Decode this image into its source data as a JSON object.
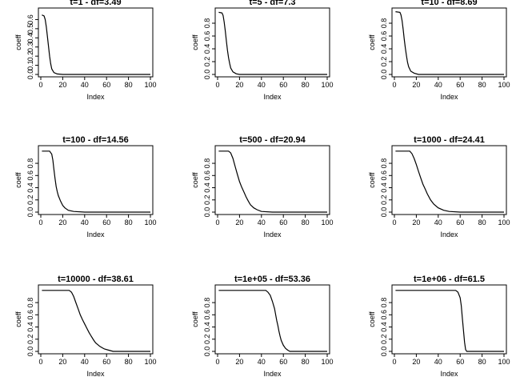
{
  "chart_data": [
    {
      "type": "line",
      "title": "t=1 - df=3.49",
      "xlabel": "Index",
      "ylabel": "coeff",
      "xlim": [
        0,
        100
      ],
      "ylim": [
        0,
        0.7
      ],
      "xticks": [
        0,
        20,
        40,
        60,
        80,
        100
      ],
      "yticks": [
        0.0,
        0.1,
        0.2,
        0.3,
        0.4,
        0.5,
        0.6
      ],
      "ytick_labels": [
        "0.0",
        "0.1",
        "0.2",
        "0.3",
        "0.4",
        "0.5",
        "0.6"
      ],
      "x": [
        1,
        3,
        4,
        5,
        6,
        7,
        8,
        9,
        10,
        12,
        15,
        20,
        30,
        50,
        100
      ],
      "y": [
        0.65,
        0.64,
        0.6,
        0.52,
        0.42,
        0.31,
        0.2,
        0.12,
        0.06,
        0.02,
        0.005,
        0.0,
        0.0,
        0.0,
        0.0
      ]
    },
    {
      "type": "line",
      "title": "t=5 - df=7.3",
      "xlabel": "Index",
      "ylabel": "coeff",
      "xlim": [
        0,
        100
      ],
      "ylim": [
        0,
        1.0
      ],
      "xticks": [
        0,
        20,
        40,
        60,
        80,
        100
      ],
      "yticks": [
        0.0,
        0.2,
        0.4,
        0.6,
        0.8
      ],
      "ytick_labels": [
        "0.0",
        "0.2",
        "0.4",
        "0.6",
        "0.8"
      ],
      "x": [
        1,
        4,
        5,
        6,
        7,
        8,
        9,
        10,
        11,
        12,
        14,
        17,
        20,
        30,
        50,
        100
      ],
      "y": [
        0.97,
        0.96,
        0.92,
        0.82,
        0.68,
        0.52,
        0.38,
        0.26,
        0.17,
        0.1,
        0.04,
        0.01,
        0.0,
        0.0,
        0.0,
        0.0
      ]
    },
    {
      "type": "line",
      "title": "t=10 - df=8.69",
      "xlabel": "Index",
      "ylabel": "coeff",
      "xlim": [
        0,
        100
      ],
      "ylim": [
        0,
        1.0
      ],
      "xticks": [
        0,
        20,
        40,
        60,
        80,
        100
      ],
      "yticks": [
        0.0,
        0.2,
        0.4,
        0.6,
        0.8
      ],
      "ytick_labels": [
        "0.0",
        "0.2",
        "0.4",
        "0.6",
        "0.8"
      ],
      "x": [
        1,
        5,
        6,
        7,
        8,
        9,
        10,
        11,
        12,
        13,
        15,
        18,
        22,
        30,
        50,
        100
      ],
      "y": [
        0.98,
        0.97,
        0.93,
        0.84,
        0.7,
        0.55,
        0.41,
        0.29,
        0.19,
        0.12,
        0.05,
        0.02,
        0.0,
        0.0,
        0.0,
        0.0
      ]
    },
    {
      "type": "line",
      "title": "t=100 - df=14.56",
      "xlabel": "Index",
      "ylabel": "coeff",
      "xlim": [
        0,
        100
      ],
      "ylim": [
        0,
        1.05
      ],
      "xticks": [
        0,
        20,
        40,
        60,
        80,
        100
      ],
      "yticks": [
        0.0,
        0.2,
        0.4,
        0.6,
        0.8
      ],
      "ytick_labels": [
        "0.0",
        "0.2",
        "0.4",
        "0.6",
        "0.8"
      ],
      "x": [
        1,
        8,
        10,
        11,
        12,
        13,
        14,
        15,
        16,
        18,
        20,
        22,
        25,
        30,
        40,
        100
      ],
      "y": [
        1.0,
        1.0,
        0.95,
        0.85,
        0.7,
        0.55,
        0.42,
        0.34,
        0.27,
        0.18,
        0.11,
        0.07,
        0.03,
        0.01,
        0.0,
        0.0
      ]
    },
    {
      "type": "line",
      "title": "t=500 - df=20.94",
      "xlabel": "Index",
      "ylabel": "coeff",
      "xlim": [
        0,
        100
      ],
      "ylim": [
        0,
        1.05
      ],
      "xticks": [
        0,
        20,
        40,
        60,
        80,
        100
      ],
      "yticks": [
        0.0,
        0.2,
        0.4,
        0.6,
        0.8
      ],
      "ytick_labels": [
        "0.0",
        "0.2",
        "0.4",
        "0.6",
        "0.8"
      ],
      "x": [
        1,
        10,
        12,
        14,
        16,
        18,
        20,
        22,
        24,
        26,
        28,
        30,
        33,
        36,
        40,
        50,
        100
      ],
      "y": [
        1.0,
        1.0,
        0.97,
        0.88,
        0.75,
        0.62,
        0.5,
        0.41,
        0.33,
        0.25,
        0.18,
        0.12,
        0.07,
        0.04,
        0.01,
        0.0,
        0.0
      ]
    },
    {
      "type": "line",
      "title": "t=1000 - df=24.41",
      "xlabel": "Index",
      "ylabel": "coeff",
      "xlim": [
        0,
        100
      ],
      "ylim": [
        0,
        1.05
      ],
      "xticks": [
        0,
        20,
        40,
        60,
        80,
        100
      ],
      "yticks": [
        0.0,
        0.2,
        0.4,
        0.6,
        0.8
      ],
      "ytick_labels": [
        "0.0",
        "0.2",
        "0.4",
        "0.6",
        "0.8"
      ],
      "x": [
        1,
        14,
        16,
        18,
        20,
        22,
        24,
        26,
        28,
        30,
        33,
        36,
        40,
        45,
        50,
        60,
        100
      ],
      "y": [
        1.0,
        1.0,
        0.96,
        0.88,
        0.78,
        0.67,
        0.56,
        0.46,
        0.38,
        0.3,
        0.2,
        0.13,
        0.07,
        0.03,
        0.01,
        0.0,
        0.0
      ]
    },
    {
      "type": "line",
      "title": "t=10000 - df=38.61",
      "xlabel": "Index",
      "ylabel": "coeff",
      "xlim": [
        0,
        100
      ],
      "ylim": [
        0,
        1.05
      ],
      "xticks": [
        0,
        20,
        40,
        60,
        80,
        100
      ],
      "yticks": [
        0.0,
        0.2,
        0.4,
        0.6,
        0.8
      ],
      "ytick_labels": [
        "0.0",
        "0.2",
        "0.4",
        "0.6",
        "0.8"
      ],
      "x": [
        1,
        26,
        28,
        30,
        32,
        34,
        36,
        38,
        40,
        42,
        44,
        46,
        48,
        50,
        54,
        58,
        62,
        66,
        100
      ],
      "y": [
        1.0,
        1.0,
        0.97,
        0.9,
        0.8,
        0.7,
        0.6,
        0.52,
        0.45,
        0.38,
        0.31,
        0.25,
        0.19,
        0.14,
        0.08,
        0.04,
        0.02,
        0.0,
        0.0
      ]
    },
    {
      "type": "line",
      "title": "t=1e+05 - df=53.36",
      "xlabel": "Index",
      "ylabel": "coeff",
      "xlim": [
        0,
        100
      ],
      "ylim": [
        0,
        1.05
      ],
      "xticks": [
        0,
        20,
        40,
        60,
        80,
        100
      ],
      "yticks": [
        0.0,
        0.2,
        0.4,
        0.6,
        0.8
      ],
      "ytick_labels": [
        "0.0",
        "0.2",
        "0.4",
        "0.6",
        "0.8"
      ],
      "x": [
        1,
        44,
        46,
        48,
        50,
        52,
        53,
        54,
        55,
        56,
        57,
        58,
        60,
        62,
        64,
        66,
        100
      ],
      "y": [
        1.0,
        1.0,
        0.97,
        0.92,
        0.82,
        0.7,
        0.6,
        0.5,
        0.42,
        0.33,
        0.25,
        0.18,
        0.1,
        0.05,
        0.02,
        0.0,
        0.0
      ]
    },
    {
      "type": "line",
      "title": "t=1e+06 - df=61.5",
      "xlabel": "Index",
      "ylabel": "coeff",
      "xlim": [
        0,
        100
      ],
      "ylim": [
        0,
        1.05
      ],
      "xticks": [
        0,
        20,
        40,
        60,
        80,
        100
      ],
      "yticks": [
        0.0,
        0.2,
        0.4,
        0.6,
        0.8
      ],
      "ytick_labels": [
        "0.0",
        "0.2",
        "0.4",
        "0.6",
        "0.8"
      ],
      "x": [
        1,
        56,
        58,
        60,
        61,
        62,
        63,
        64,
        65,
        66,
        100
      ],
      "y": [
        1.0,
        1.0,
        0.97,
        0.88,
        0.75,
        0.55,
        0.35,
        0.15,
        0.03,
        0.0,
        0.0
      ]
    }
  ]
}
